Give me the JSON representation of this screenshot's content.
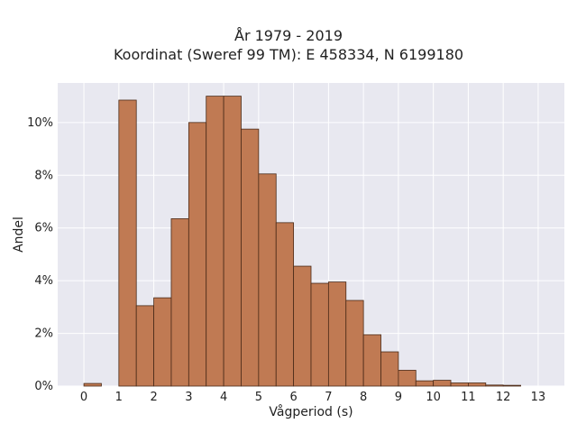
{
  "chart_data": {
    "type": "bar",
    "title": "År 1979 - 2019",
    "subtitle": "Koordinat (Sweref 99 TM): E 458334, N 6199180",
    "xlabel": "Vågperiod (s)",
    "ylabel": "Andel",
    "xlim": [
      -0.75,
      13.75
    ],
    "ylim": [
      0,
      11.5
    ],
    "x_ticks": [
      0,
      1,
      2,
      3,
      4,
      5,
      6,
      7,
      8,
      9,
      10,
      11,
      12,
      13
    ],
    "y_ticks": [
      0,
      2,
      4,
      6,
      8,
      10
    ],
    "y_tick_labels": [
      "0%",
      "2%",
      "4%",
      "6%",
      "8%",
      "10%"
    ],
    "bin_width": 0.5,
    "bins": [
      {
        "x0": 0.0,
        "x1": 0.5,
        "value": 0.1
      },
      {
        "x0": 0.5,
        "x1": 1.0,
        "value": 0.0
      },
      {
        "x0": 1.0,
        "x1": 1.5,
        "value": 10.85
      },
      {
        "x0": 1.5,
        "x1": 2.0,
        "value": 3.05
      },
      {
        "x0": 2.0,
        "x1": 2.5,
        "value": 3.35
      },
      {
        "x0": 2.5,
        "x1": 3.0,
        "value": 6.35
      },
      {
        "x0": 3.0,
        "x1": 3.5,
        "value": 10.0
      },
      {
        "x0": 3.5,
        "x1": 4.0,
        "value": 11.0
      },
      {
        "x0": 4.0,
        "x1": 4.5,
        "value": 11.0
      },
      {
        "x0": 4.5,
        "x1": 5.0,
        "value": 9.75
      },
      {
        "x0": 5.0,
        "x1": 5.5,
        "value": 8.05
      },
      {
        "x0": 5.5,
        "x1": 6.0,
        "value": 6.2
      },
      {
        "x0": 6.0,
        "x1": 6.5,
        "value": 4.55
      },
      {
        "x0": 6.5,
        "x1": 7.0,
        "value": 3.9
      },
      {
        "x0": 7.0,
        "x1": 7.5,
        "value": 3.95
      },
      {
        "x0": 7.5,
        "x1": 8.0,
        "value": 3.25
      },
      {
        "x0": 8.0,
        "x1": 8.5,
        "value": 1.95
      },
      {
        "x0": 8.5,
        "x1": 9.0,
        "value": 1.3
      },
      {
        "x0": 9.0,
        "x1": 9.5,
        "value": 0.6
      },
      {
        "x0": 9.5,
        "x1": 10.0,
        "value": 0.2
      },
      {
        "x0": 10.0,
        "x1": 10.5,
        "value": 0.22
      },
      {
        "x0": 10.5,
        "x1": 11.0,
        "value": 0.12
      },
      {
        "x0": 11.0,
        "x1": 11.5,
        "value": 0.12
      },
      {
        "x0": 11.5,
        "x1": 12.0,
        "value": 0.04
      },
      {
        "x0": 12.0,
        "x1": 12.5,
        "value": 0.03
      }
    ],
    "grid": true,
    "colors": {
      "bar_fill": "#c07a53",
      "bar_edge": "#4a2a18",
      "plot_background": "#e8e8f0",
      "grid": "#ffffff"
    }
  }
}
